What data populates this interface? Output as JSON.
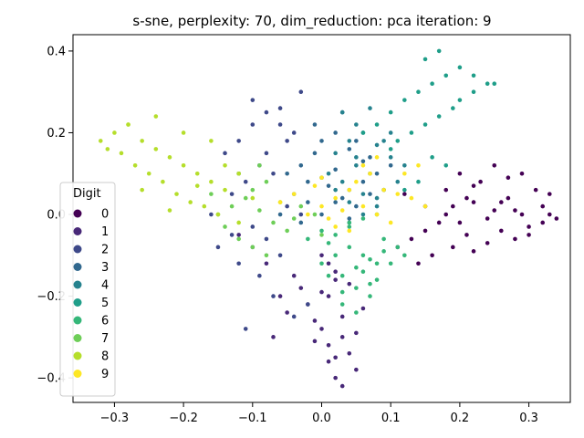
{
  "chart_data": {
    "type": "scatter",
    "title": "s-sne, perplexity: 70, dim_reduction: pca iteration: 9",
    "xlabel": "",
    "ylabel": "",
    "xlim": [
      -0.36,
      0.36
    ],
    "ylim": [
      -0.46,
      0.44
    ],
    "xticks": [
      -0.3,
      -0.2,
      -0.1,
      0.0,
      0.1,
      0.2,
      0.3
    ],
    "xtick_labels": [
      "−0.3",
      "−0.2",
      "−0.1",
      "0.0",
      "0.1",
      "0.2",
      "0.3"
    ],
    "yticks": [
      0.4,
      0.2,
      0.0,
      -0.2,
      -0.4
    ],
    "ytick_labels": [
      "0.4",
      "0.2",
      "0.0",
      "−0.2",
      "−0.4"
    ],
    "grid": false,
    "legend": {
      "title": "Digit",
      "placement": "left-center",
      "entries": [
        "0",
        "1",
        "2",
        "3",
        "4",
        "5",
        "6",
        "7",
        "8",
        "9"
      ]
    },
    "series_colors": [
      "#440154",
      "#482878",
      "#3e4989",
      "#31688e",
      "#26828e",
      "#1f9e89",
      "#35b779",
      "#6ece58",
      "#b5de2b",
      "#fde725"
    ],
    "series": [
      {
        "name": "0",
        "x": [
          0.12,
          0.15,
          0.18,
          0.2,
          0.22,
          0.25,
          0.27,
          0.29,
          0.3,
          0.32,
          0.33,
          0.34,
          0.28,
          0.26,
          0.24,
          0.21,
          0.19,
          0.16,
          0.14,
          0.23,
          0.31,
          0.29,
          0.27,
          0.25,
          0.22,
          0.2,
          0.18,
          0.17,
          0.15,
          0.13,
          0.11,
          0.24,
          0.26,
          0.3,
          0.33,
          0.22,
          0.19,
          0.21,
          0.28,
          0.32
        ],
        "y": [
          0.05,
          0.02,
          0.0,
          -0.02,
          0.03,
          0.01,
          0.04,
          0.0,
          -0.03,
          0.02,
          0.05,
          -0.01,
          -0.06,
          -0.04,
          -0.07,
          -0.05,
          -0.08,
          -0.1,
          -0.12,
          0.08,
          0.06,
          0.1,
          0.09,
          0.12,
          0.07,
          0.1,
          0.06,
          -0.02,
          -0.04,
          -0.06,
          -0.08,
          -0.01,
          0.03,
          -0.05,
          0.0,
          -0.09,
          0.02,
          0.04,
          0.01,
          -0.02
        ]
      },
      {
        "name": "1",
        "x": [
          0.0,
          0.01,
          0.02,
          0.03,
          -0.01,
          -0.02,
          0.04,
          0.05,
          0.02,
          0.03,
          0.01,
          -0.03,
          -0.04,
          -0.06,
          -0.08,
          -0.1,
          -0.12,
          0.0,
          0.02,
          0.04,
          0.06,
          0.01,
          -0.01,
          0.03,
          0.05,
          -0.05,
          -0.07,
          0.0,
          0.02,
          0.01
        ],
        "y": [
          -0.28,
          -0.32,
          -0.35,
          -0.3,
          -0.26,
          -0.22,
          -0.34,
          -0.38,
          -0.4,
          -0.25,
          -0.2,
          -0.18,
          -0.15,
          -0.2,
          -0.12,
          -0.08,
          -0.05,
          -0.1,
          -0.14,
          -0.17,
          -0.23,
          -0.36,
          -0.31,
          -0.42,
          -0.29,
          -0.24,
          -0.3,
          -0.19,
          -0.16,
          -0.12
        ]
      },
      {
        "name": "2",
        "x": [
          -0.1,
          -0.08,
          -0.06,
          -0.04,
          -0.12,
          -0.14,
          -0.09,
          -0.07,
          -0.11,
          -0.13,
          -0.05,
          -0.03,
          -0.1,
          -0.08,
          -0.06,
          -0.15,
          -0.12,
          -0.09,
          -0.07,
          -0.04,
          -0.02,
          -0.11,
          -0.13,
          -0.16,
          -0.08,
          -0.05,
          -0.1,
          -0.06,
          -0.03,
          -0.12
        ],
        "y": [
          0.28,
          0.25,
          0.22,
          0.2,
          0.18,
          0.15,
          0.12,
          0.1,
          0.08,
          0.05,
          0.02,
          0.0,
          -0.03,
          -0.06,
          -0.1,
          -0.08,
          -0.12,
          -0.15,
          -0.2,
          -0.25,
          -0.22,
          -0.28,
          -0.05,
          0.0,
          0.15,
          0.18,
          0.22,
          0.26,
          0.3,
          0.1
        ]
      },
      {
        "name": "3",
        "x": [
          -0.05,
          -0.03,
          -0.01,
          0.0,
          0.02,
          0.04,
          0.06,
          0.08,
          -0.04,
          -0.02,
          0.01,
          0.03,
          0.05,
          0.07,
          -0.06,
          -0.03,
          0.0,
          0.02,
          0.04,
          0.06,
          0.09,
          0.1,
          -0.01,
          0.03,
          0.05,
          0.07,
          0.0,
          0.02,
          -0.02,
          0.04
        ],
        "y": [
          0.1,
          0.12,
          0.15,
          0.18,
          0.2,
          0.16,
          0.13,
          0.1,
          0.05,
          0.08,
          0.07,
          0.04,
          0.02,
          0.05,
          0.0,
          -0.02,
          0.0,
          0.03,
          -0.01,
          0.08,
          0.06,
          0.12,
          0.22,
          0.25,
          0.18,
          0.14,
          0.09,
          0.11,
          0.03,
          0.06
        ]
      },
      {
        "name": "4",
        "x": [
          0.02,
          0.04,
          0.06,
          0.08,
          0.1,
          0.05,
          0.07,
          0.03,
          0.01,
          0.09,
          0.11,
          0.06,
          0.04,
          0.08,
          0.05,
          0.03,
          0.07,
          0.1,
          0.12,
          0.02,
          0.06,
          0.04,
          0.08,
          0.05,
          0.09
        ],
        "y": [
          0.15,
          0.18,
          0.2,
          0.17,
          0.14,
          0.12,
          0.1,
          0.08,
          0.1,
          0.06,
          0.08,
          0.05,
          0.03,
          0.02,
          0.22,
          0.25,
          0.26,
          0.2,
          0.12,
          0.06,
          0.0,
          -0.02,
          0.04,
          0.14,
          0.18
        ]
      },
      {
        "name": "5",
        "x": [
          0.1,
          0.12,
          0.14,
          0.16,
          0.18,
          0.2,
          0.22,
          0.15,
          0.17,
          0.19,
          0.13,
          0.11,
          0.16,
          0.18,
          0.14,
          0.12,
          0.2,
          0.22,
          0.24,
          0.25,
          0.1,
          0.08,
          0.06,
          0.15,
          0.17
        ],
        "y": [
          0.25,
          0.28,
          0.3,
          0.32,
          0.34,
          0.36,
          0.3,
          0.22,
          0.24,
          0.26,
          0.2,
          0.18,
          0.14,
          0.12,
          0.08,
          0.06,
          0.28,
          0.34,
          0.32,
          0.32,
          0.16,
          0.22,
          0.2,
          0.38,
          0.4
        ]
      },
      {
        "name": "6",
        "x": [
          0.02,
          0.04,
          0.06,
          0.08,
          0.03,
          0.05,
          0.07,
          0.09,
          0.01,
          0.0,
          -0.02,
          0.04,
          0.06,
          0.08,
          0.1,
          0.12,
          0.05,
          0.07,
          0.03,
          0.09,
          0.11,
          0.02,
          0.04,
          0.06,
          0.08,
          0.0,
          0.01,
          0.05,
          0.07,
          0.03
        ],
        "y": [
          -0.05,
          -0.08,
          -0.1,
          -0.12,
          -0.15,
          -0.13,
          -0.11,
          -0.09,
          -0.07,
          -0.04,
          -0.06,
          -0.02,
          -0.14,
          -0.16,
          -0.12,
          -0.1,
          -0.18,
          -0.2,
          -0.19,
          -0.06,
          -0.08,
          -0.1,
          -0.03,
          -0.01,
          0.0,
          -0.12,
          -0.15,
          -0.24,
          -0.17,
          -0.22
        ]
      },
      {
        "name": "7",
        "x": [
          -0.15,
          -0.13,
          -0.11,
          -0.09,
          -0.07,
          -0.05,
          -0.12,
          -0.1,
          -0.08,
          -0.06,
          -0.04,
          -0.14,
          -0.16,
          -0.1,
          -0.08,
          -0.03,
          -0.01,
          0.0,
          -0.12,
          -0.09
        ],
        "y": [
          0.0,
          0.02,
          0.04,
          0.01,
          -0.02,
          -0.04,
          -0.06,
          0.06,
          0.08,
          0.03,
          -0.01,
          -0.03,
          0.05,
          -0.08,
          -0.1,
          0.02,
          0.0,
          -0.05,
          0.1,
          0.12
        ]
      },
      {
        "name": "8",
        "x": [
          -0.32,
          -0.3,
          -0.28,
          -0.26,
          -0.24,
          -0.22,
          -0.2,
          -0.18,
          -0.16,
          -0.14,
          -0.29,
          -0.27,
          -0.25,
          -0.23,
          -0.21,
          -0.19,
          -0.17,
          -0.15,
          -0.12,
          -0.1,
          -0.31,
          -0.28,
          -0.24,
          -0.2,
          -0.16,
          -0.22,
          -0.18,
          -0.26,
          -0.14,
          -0.12
        ],
        "y": [
          0.18,
          0.2,
          0.22,
          0.18,
          0.16,
          0.14,
          0.12,
          0.1,
          0.08,
          0.06,
          0.15,
          0.12,
          0.1,
          0.08,
          0.05,
          0.03,
          0.02,
          0.0,
          -0.02,
          0.04,
          0.16,
          0.22,
          0.24,
          0.2,
          0.18,
          0.01,
          0.07,
          0.06,
          0.12,
          0.1
        ]
      },
      {
        "name": "9",
        "x": [
          -0.02,
          0.0,
          0.02,
          0.04,
          0.06,
          0.08,
          0.1,
          -0.04,
          -0.06,
          0.01,
          0.03,
          0.05,
          0.07,
          0.09,
          0.12,
          0.14,
          -0.01,
          0.02,
          0.04,
          0.11,
          0.13,
          0.15,
          0.06,
          0.08,
          0.0
        ],
        "y": [
          0.0,
          0.02,
          0.04,
          0.06,
          0.02,
          0.0,
          -0.02,
          0.05,
          0.03,
          -0.01,
          0.01,
          0.08,
          0.1,
          0.06,
          0.1,
          0.12,
          0.07,
          -0.03,
          -0.04,
          0.05,
          0.04,
          0.02,
          0.12,
          0.14,
          0.09
        ]
      }
    ]
  }
}
